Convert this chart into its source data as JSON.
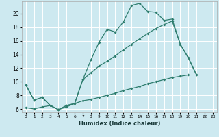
{
  "xlabel": "Humidex (Indice chaleur)",
  "xlim": [
    -0.5,
    23.5
  ],
  "ylim": [
    5.5,
    21.8
  ],
  "yticks": [
    6,
    8,
    10,
    12,
    14,
    16,
    18,
    20
  ],
  "xticks": [
    0,
    1,
    2,
    3,
    4,
    5,
    6,
    7,
    8,
    9,
    10,
    11,
    12,
    13,
    14,
    15,
    16,
    17,
    18,
    19,
    20,
    21,
    22,
    23
  ],
  "bg_color": "#cde9f0",
  "grid_color": "#ffffff",
  "line_color": "#2e7d6e",
  "line1_x": [
    0,
    1,
    2,
    3,
    4,
    5,
    6,
    7,
    8,
    9,
    10,
    11,
    12,
    13,
    14,
    15,
    16,
    17,
    18,
    19,
    20,
    21,
    22,
    23
  ],
  "line1_y": [
    9.5,
    7.3,
    7.7,
    6.5,
    5.9,
    6.5,
    6.8,
    10.3,
    13.2,
    15.8,
    17.7,
    17.3,
    18.8,
    21.2,
    21.5,
    20.3,
    20.2,
    19.0,
    19.2,
    15.5,
    13.5,
    11.0,
    null,
    null
  ],
  "line2_x": [
    0,
    1,
    2,
    3,
    4,
    5,
    6,
    7,
    8,
    9,
    10,
    11,
    12,
    13,
    14,
    15,
    16,
    17,
    18,
    19,
    20,
    21,
    22,
    23
  ],
  "line2_y": [
    9.5,
    7.3,
    7.7,
    6.5,
    5.9,
    6.5,
    6.8,
    10.3,
    11.3,
    12.3,
    13.0,
    13.8,
    14.7,
    15.5,
    16.3,
    17.1,
    17.8,
    18.4,
    18.9,
    15.5,
    13.5,
    11.0,
    null,
    null
  ],
  "line3_x": [
    0,
    1,
    2,
    3,
    4,
    5,
    6,
    7,
    8,
    9,
    10,
    11,
    12,
    13,
    14,
    15,
    16,
    17,
    18,
    19,
    20,
    21,
    22,
    23
  ],
  "line3_y": [
    6.2,
    6.0,
    6.3,
    6.5,
    5.9,
    6.3,
    6.8,
    7.2,
    7.4,
    7.7,
    8.0,
    8.3,
    8.7,
    9.0,
    9.3,
    9.7,
    10.0,
    10.3,
    10.6,
    10.8,
    11.0,
    null,
    null,
    null
  ],
  "marker": "D",
  "markersize": 2.0,
  "linewidth": 0.9
}
